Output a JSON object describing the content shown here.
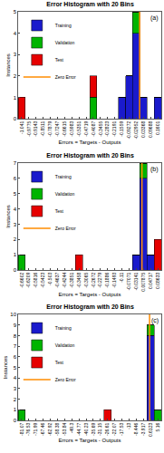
{
  "chart_data": [
    {
      "type": "histogram",
      "title": "Error Histogram with 20 Bins",
      "panel_label": "(a)",
      "x_label": "Errors = Targets - Outputs",
      "y_label": "Instances",
      "bins": [
        -1.0726,
        -1.0094,
        -0.9462,
        -0.883,
        -0.8198,
        -0.7566,
        -0.6934,
        -0.6302,
        -0.567,
        -0.5038,
        -0.4406,
        -0.3774,
        -0.3142,
        -0.251,
        -0.1878,
        -0.1246,
        -0.0614,
        0.0018,
        0.065,
        0.1282,
        0.1914
      ],
      "series": [
        {
          "name": "Training",
          "color": "#1a1acc",
          "values": [
            0,
            0,
            0,
            0,
            0,
            0,
            0,
            0,
            0,
            0,
            0,
            0,
            0,
            0,
            1,
            2,
            4,
            1,
            0,
            1
          ]
        },
        {
          "name": "Validation",
          "color": "#00b400",
          "values": [
            0,
            0,
            0,
            0,
            0,
            0,
            0,
            0,
            0,
            0,
            1,
            0,
            0,
            0,
            0,
            0,
            1,
            0,
            0,
            0
          ]
        },
        {
          "name": "Test",
          "color": "#e60000",
          "values": [
            1,
            0,
            0,
            0,
            0,
            0,
            0,
            0,
            0,
            0,
            1,
            0,
            0,
            0,
            0,
            0,
            0,
            0,
            0,
            0
          ]
        }
      ],
      "zero_line": {
        "name": "Zero Error",
        "x": 0,
        "color": "#ff8c00"
      },
      "xlim": [
        -1.0726,
        0.1914
      ],
      "xticks": [
        -1.041,
        -0.9775,
        -0.9143,
        -0.8511,
        -0.7879,
        -0.7247,
        -0.6615,
        -0.5983,
        -0.5351,
        -0.4719,
        -0.4087,
        -0.3455,
        -0.2823,
        -0.2191,
        -0.1559,
        -0.09272,
        -0.02952,
        0.03368,
        0.09688,
        0.1601
      ],
      "ylim": [
        0,
        5
      ],
      "yticks": [
        0,
        1,
        2,
        3,
        4,
        5
      ],
      "stacked": true,
      "grid": false,
      "legend": "upper left"
    },
    {
      "type": "histogram",
      "title": "Error Histogram with 20 Bins",
      "panel_label": "(b)",
      "x_label": "Errors = Targets - Outputs",
      "y_label": "Instances",
      "bins": [
        -0.6798,
        -0.6405,
        -0.6012,
        -0.562,
        -0.5227,
        -0.4834,
        -0.4441,
        -0.4048,
        -0.3655,
        -0.3262,
        -0.2869,
        -0.2476,
        -0.2083,
        -0.169,
        -0.1297,
        -0.0904,
        -0.0511,
        -0.0118,
        0.0275,
        0.0668,
        0.106
      ],
      "series": [
        {
          "name": "Training",
          "color": "#1a1acc",
          "values": [
            0,
            0,
            0,
            0,
            0,
            0,
            0,
            0,
            0,
            0,
            0,
            0,
            0,
            0,
            0,
            0,
            1,
            6,
            1,
            0
          ]
        },
        {
          "name": "Validation",
          "color": "#00b400",
          "values": [
            1,
            0,
            0,
            0,
            0,
            0,
            0,
            0,
            0,
            0,
            0,
            0,
            0,
            0,
            0,
            0,
            0,
            1,
            0,
            0
          ]
        },
        {
          "name": "Test",
          "color": "#e60000",
          "values": [
            0,
            0,
            0,
            0,
            0,
            0,
            0,
            0,
            1,
            0,
            0,
            0,
            0,
            0,
            0,
            0,
            0,
            0,
            0,
            2
          ]
        }
      ],
      "zero_line": {
        "name": "Zero Error",
        "x": 0,
        "color": "#ff8c00"
      },
      "xlim": [
        -0.6798,
        0.106
      ],
      "xticks": [
        -0.6602,
        -0.6209,
        -0.5816,
        -0.5423,
        -0.503,
        -0.4637,
        -0.4244,
        -0.3851,
        -0.3458,
        -0.3065,
        -0.2672,
        -0.2279,
        -0.1886,
        -0.1493,
        -0.11,
        -0.07071,
        -0.03141,
        0.007875,
        0.04717,
        0.08633
      ],
      "ylim": [
        0,
        7
      ],
      "yticks": [
        0,
        1,
        2,
        3,
        4,
        5,
        6,
        7
      ],
      "stacked": true,
      "grid": false,
      "legend": "upper left"
    },
    {
      "type": "histogram",
      "title": "Error Histogram with 20 Bins",
      "panel_label": "(c)",
      "x_label": "Errors = Targets - Outputs",
      "y_label": "Instances",
      "bins": [
        -83.34,
        -78.8,
        -74.26,
        -69.72,
        -65.19,
        -60.65,
        -56.11,
        -51.57,
        -47.03,
        -42.5,
        -37.96,
        -33.42,
        -28.88,
        -24.34,
        -19.81,
        -15.27,
        -10.73,
        -6.19,
        -1.65,
        2.89,
        7.43
      ],
      "series": [
        {
          "name": "Training",
          "color": "#1a1acc",
          "values": [
            0,
            0,
            0,
            0,
            0,
            0,
            0,
            0,
            0,
            0,
            0,
            0,
            0,
            0,
            0,
            0,
            0,
            0,
            8,
            0
          ]
        },
        {
          "name": "Validation",
          "color": "#00b400",
          "values": [
            1,
            0,
            0,
            0,
            0,
            0,
            0,
            0,
            0,
            0,
            0,
            0,
            0,
            0,
            0,
            0,
            0,
            0,
            1,
            1
          ]
        },
        {
          "name": "Test",
          "color": "#e60000",
          "values": [
            0,
            0,
            0,
            0,
            0,
            0,
            0,
            0,
            0,
            0,
            0,
            0,
            1,
            0,
            0,
            0,
            0,
            0,
            0,
            0
          ]
        }
      ],
      "zero_line": {
        "name": "Zero Error",
        "x": 0,
        "color": "#ff8c00"
      },
      "xlim": [
        -83.34,
        7.43
      ],
      "xticks": [
        -81.07,
        -76.53,
        -71.99,
        -67.46,
        -62.92,
        -58.38,
        -53.84,
        -49.3,
        -44.77,
        -40.23,
        -35.69,
        -31.15,
        -26.61,
        -22.07,
        -17.53,
        -13,
        -8.446,
        -3.917,
        0.6123,
        5.16
      ],
      "ylim": [
        0,
        10
      ],
      "yticks": [
        0,
        1,
        2,
        3,
        4,
        5,
        6,
        7,
        8,
        9,
        10
      ],
      "stacked": true,
      "grid": false,
      "legend": "upper left"
    }
  ]
}
